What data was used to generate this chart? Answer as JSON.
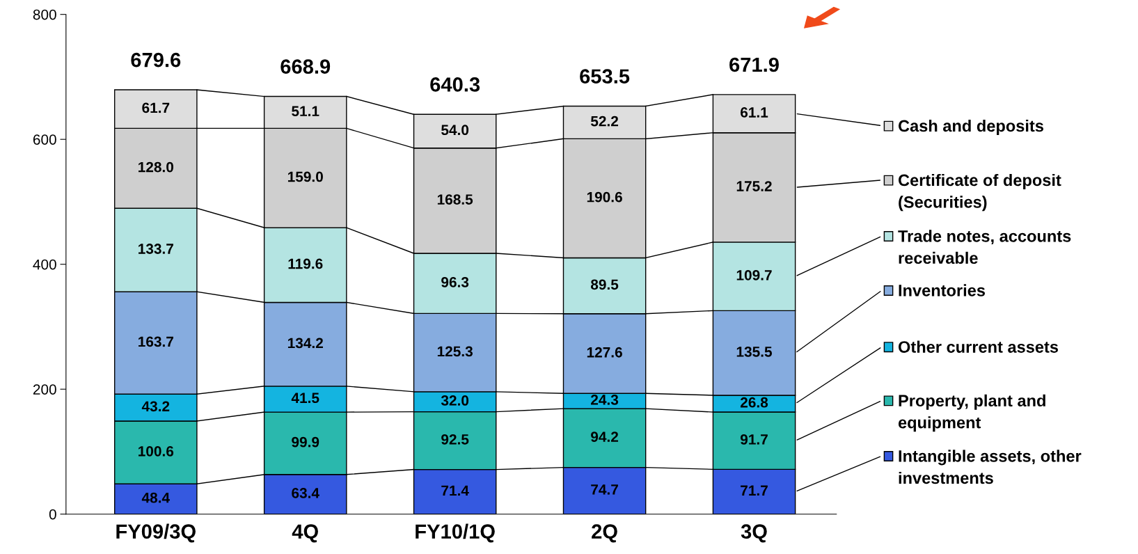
{
  "chart_data": {
    "type": "bar",
    "stacked": true,
    "categories": [
      "FY09/3Q",
      "4Q",
      "FY10/1Q",
      "2Q",
      "3Q"
    ],
    "series": [
      {
        "name": "Intangible assets, other\ninvestments",
        "color": "#3559e0",
        "values": [
          48.4,
          63.4,
          71.4,
          74.7,
          71.7
        ],
        "value_labels": [
          "48.4",
          "63.4",
          "71.4",
          "74.7",
          "71.7"
        ]
      },
      {
        "name": "Property, plant and\nequipment",
        "color": "#2ab8ad",
        "values": [
          100.6,
          99.9,
          92.5,
          94.2,
          91.7
        ],
        "value_labels": [
          "100.6",
          "99.9",
          "92.5",
          "94.2",
          "91.7"
        ]
      },
      {
        "name": "Other current assets",
        "color": "#14b4e0",
        "values": [
          43.2,
          41.5,
          32,
          24.3,
          26.8
        ],
        "value_labels": [
          "43.2",
          "41.5",
          "32.0",
          "24.3",
          "26.8"
        ]
      },
      {
        "name": "Inventories",
        "color": "#86acdf",
        "values": [
          163.7,
          134.2,
          125.3,
          127.6,
          135.5
        ],
        "value_labels": [
          "163.7",
          "134.2",
          "125.3",
          "127.6",
          "135.5"
        ]
      },
      {
        "name": "Trade notes, accounts\nreceivable",
        "color": "#b4e4e2",
        "values": [
          133.7,
          119.6,
          96.3,
          89.5,
          109.7
        ],
        "value_labels": [
          "133.7",
          "119.6",
          "96.3",
          "89.5",
          "109.7"
        ]
      },
      {
        "name": "Certificate of deposit\n(Securities)",
        "color": "#cfcfcf",
        "values": [
          128,
          159,
          168.5,
          190.6,
          175.2
        ],
        "value_labels": [
          "128.0",
          "159.0",
          "168.5",
          "190.6",
          "175.2"
        ]
      },
      {
        "name": "Cash and deposits",
        "color": "#dedede",
        "values": [
          61.7,
          51.1,
          54,
          52.2,
          61.1
        ],
        "value_labels": [
          "61.7",
          "51.1",
          "54.0",
          "52.2",
          "61.1"
        ]
      }
    ],
    "totals": [
      "679.6",
      "668.9",
      "640.3",
      "653.5",
      "671.9"
    ],
    "ylim": [
      0,
      800
    ],
    "yticks": [
      0,
      200,
      400,
      600,
      800
    ],
    "grid": false,
    "legend": "right"
  }
}
